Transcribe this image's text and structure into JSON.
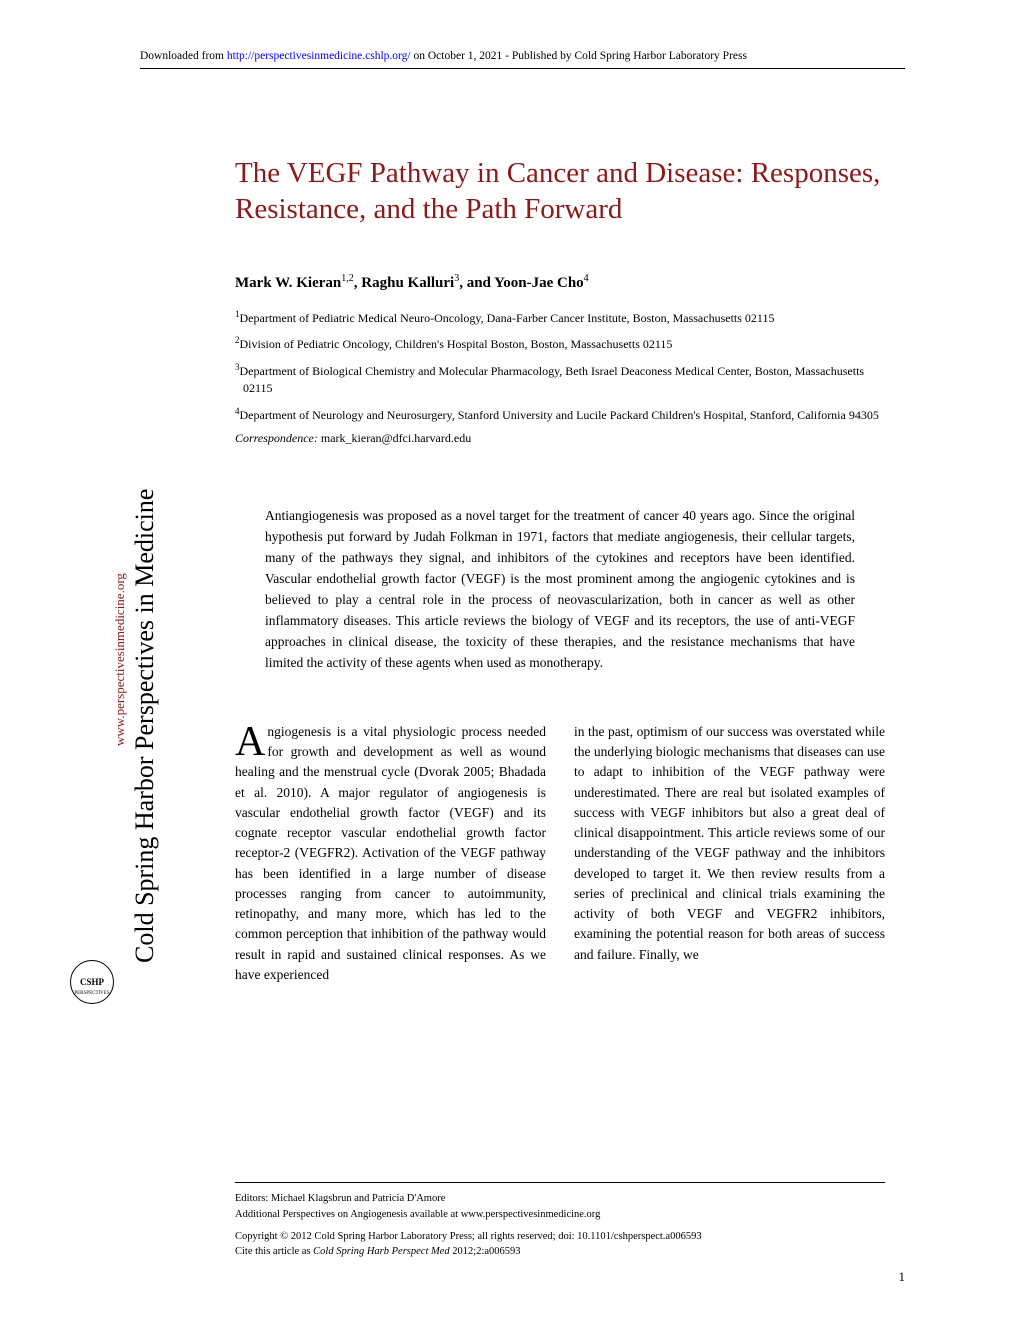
{
  "download_notice": {
    "prefix": "Downloaded from ",
    "url": "http://perspectivesinmedicine.cshlp.org/",
    "suffix": " on October 1, 2021 - Published by Cold Spring Harbor Laboratory Press"
  },
  "sidebar": {
    "journal_name": "Cold Spring Harbor Perspectives in Medicine",
    "url": "www.perspectivesinmedicine.org",
    "logo_text": "CSHP",
    "logo_sub": "PERSPECTIVES"
  },
  "article": {
    "title": "The VEGF Pathway in Cancer and Disease: Responses, Resistance, and the Path Forward",
    "authors_html": "Mark W. Kieran",
    "author1_sup": "1,2",
    "author2": ", Raghu Kalluri",
    "author2_sup": "3",
    "author3": ", and Yoon-Jae Cho",
    "author3_sup": "4",
    "affiliations": [
      {
        "sup": "1",
        "text": "Department of Pediatric Medical Neuro-Oncology, Dana-Farber Cancer Institute, Boston, Massachusetts 02115"
      },
      {
        "sup": "2",
        "text": "Division of Pediatric Oncology, Children's Hospital Boston, Boston, Massachusetts 02115"
      },
      {
        "sup": "3",
        "text": "Department of Biological Chemistry and Molecular Pharmacology, Beth Israel Deaconess Medical Center, Boston, Massachusetts 02115"
      },
      {
        "sup": "4",
        "text": "Department of Neurology and Neurosurgery, Stanford University and Lucile Packard Children's Hospital, Stanford, California 94305"
      }
    ],
    "correspondence_label": "Correspondence:",
    "correspondence_email": "mark_kieran@dfci.harvard.edu",
    "abstract": "Antiangiogenesis was proposed as a novel target for the treatment of cancer 40 years ago. Since the original hypothesis put forward by Judah Folkman in 1971, factors that mediate angiogenesis, their cellular targets, many of the pathways they signal, and inhibitors of the cytokines and receptors have been identified. Vascular endothelial growth factor (VEGF) is the most prominent among the angiogenic cytokines and is believed to play a central role in the process of neovascularization, both in cancer as well as other inflammatory diseases. This article reviews the biology of VEGF and its receptors, the use of anti-VEGF approaches in clinical disease, the toxicity of these therapies, and the resistance mechanisms that have limited the activity of these agents when used as monotherapy.",
    "body_dropcap": "A",
    "body_col1": "ngiogenesis is a vital physiologic process needed for growth and development as well as wound healing and the menstrual cycle (Dvorak 2005; Bhadada et al. 2010). A major regulator of angiogenesis is vascular endothelial growth factor (VEGF) and its cognate receptor vascular endothelial growth factor receptor-2 (VEGFR2). Activation of the VEGF pathway has been identified in a large number of disease processes ranging from cancer to autoimmunity, retinopathy, and many more, which has led to the common perception that inhibition of the pathway would result in rapid and sustained clinical responses. As we have experienced",
    "body_col2": "in the past, optimism of our success was overstated while the underlying biologic mechanisms that diseases can use to adapt to inhibition of the VEGF pathway were underestimated. There are real but isolated examples of success with VEGF inhibitors but also a great deal of clinical disappointment. This article reviews some of our understanding of the VEGF pathway and the inhibitors developed to target it. We then review results from a series of preclinical and clinical trials examining the activity of both VEGF and VEGFR2 inhibitors, examining the potential reason for both areas of success and failure. Finally, we"
  },
  "footer": {
    "editors": "Editors: Michael Klagsbrun and Patricia D'Amore",
    "additional": "Additional Perspectives on Angiogenesis available at www.perspectivesinmedicine.org",
    "copyright": "Copyright © 2012 Cold Spring Harbor Laboratory Press; all rights reserved; doi: 10.1101/cshperspect.a006593",
    "cite_prefix": "Cite this article as ",
    "cite_italic": "Cold Spring Harb Perspect Med",
    "cite_suffix": " 2012;2:a006593"
  },
  "page_number": "1",
  "colors": {
    "title_color": "#8b1a1a",
    "link_color": "#0000ee",
    "text_color": "#000000",
    "background": "#ffffff"
  }
}
